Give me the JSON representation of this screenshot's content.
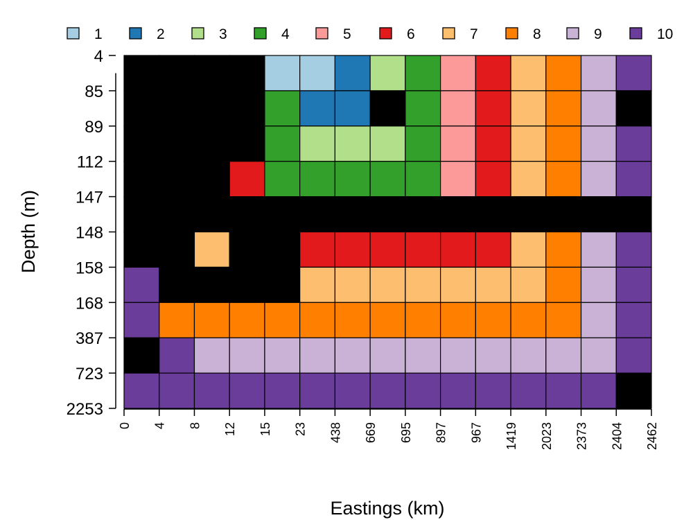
{
  "chart_data": {
    "type": "heatmap",
    "title": "",
    "xlabel": "Eastings (km)",
    "ylabel": "Depth (m)",
    "x_ticks": [
      "0",
      "4",
      "8",
      "12",
      "15",
      "23",
      "438",
      "669",
      "695",
      "897",
      "967",
      "1419",
      "2023",
      "2373",
      "2404",
      "2462"
    ],
    "y_ticks": [
      "4",
      "85",
      "89",
      "112",
      "147",
      "148",
      "158",
      "168",
      "387",
      "723",
      "2253"
    ],
    "legend": {
      "placement": "top",
      "entries": [
        {
          "label": "1",
          "color": "#a6cee3"
        },
        {
          "label": "2",
          "color": "#1f78b4"
        },
        {
          "label": "3",
          "color": "#b2df8a"
        },
        {
          "label": "4",
          "color": "#33a02c"
        },
        {
          "label": "5",
          "color": "#fb9a99"
        },
        {
          "label": "6",
          "color": "#e31a1c"
        },
        {
          "label": "7",
          "color": "#fdbf6f"
        },
        {
          "label": "8",
          "color": "#ff7f00"
        },
        {
          "label": "9",
          "color": "#cab2d6"
        },
        {
          "label": "10",
          "color": "#6a3d9a"
        }
      ]
    },
    "missing_color": "#000000",
    "grid": [
      [
        0,
        0,
        0,
        0,
        1,
        1,
        2,
        3,
        4,
        5,
        6,
        7,
        8,
        9,
        10
      ],
      [
        0,
        0,
        0,
        0,
        4,
        2,
        2,
        0,
        4,
        5,
        6,
        7,
        8,
        9,
        0
      ],
      [
        0,
        0,
        0,
        0,
        4,
        3,
        3,
        3,
        4,
        5,
        6,
        7,
        8,
        9,
        10
      ],
      [
        0,
        0,
        0,
        6,
        4,
        4,
        4,
        4,
        4,
        5,
        6,
        7,
        8,
        9,
        10
      ],
      [
        0,
        0,
        0,
        0,
        0,
        0,
        0,
        0,
        0,
        0,
        0,
        0,
        0,
        0,
        0
      ],
      [
        0,
        0,
        7,
        0,
        0,
        6,
        6,
        6,
        6,
        6,
        6,
        7,
        8,
        9,
        10
      ],
      [
        10,
        0,
        0,
        0,
        0,
        7,
        7,
        7,
        7,
        7,
        7,
        7,
        8,
        9,
        10
      ],
      [
        10,
        8,
        8,
        8,
        8,
        8,
        8,
        8,
        8,
        8,
        8,
        8,
        8,
        9,
        10
      ],
      [
        0,
        10,
        9,
        9,
        9,
        9,
        9,
        9,
        9,
        9,
        9,
        9,
        9,
        9,
        10
      ],
      [
        10,
        10,
        10,
        10,
        10,
        10,
        10,
        10,
        10,
        10,
        10,
        10,
        10,
        10,
        0
      ]
    ]
  }
}
